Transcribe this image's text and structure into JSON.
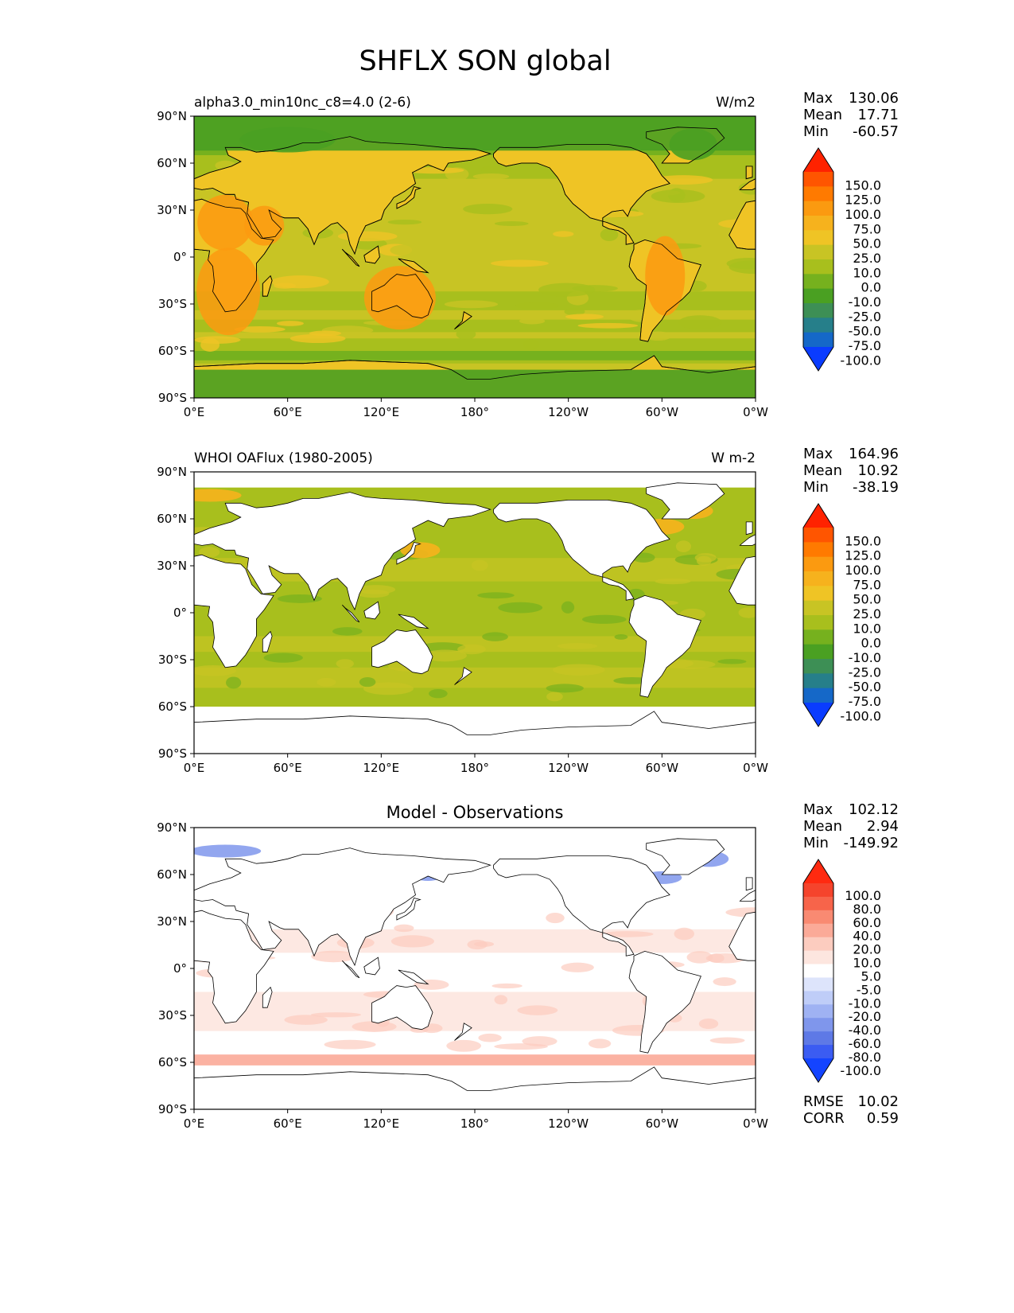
{
  "figure": {
    "title": "SHFLX SON global"
  },
  "chart_data": [
    {
      "type": "heatmap",
      "left_title": "alpha3.0_min10nc_c8=4.0 (2-6)",
      "center_title": "",
      "units": "W/m2",
      "lon_ticks": [
        "0°E",
        "60°E",
        "120°E",
        "180°",
        "120°W",
        "60°W",
        "0°W"
      ],
      "lat_ticks": [
        "90°N",
        "60°N",
        "30°N",
        "0°",
        "30°S",
        "60°S",
        "90°S"
      ],
      "xlim": [
        0,
        360
      ],
      "ylim": [
        -90,
        90
      ],
      "stats": [
        {
          "label": "Max",
          "value": "130.06"
        },
        {
          "label": "Mean",
          "value": "17.71"
        },
        {
          "label": "Min",
          "value": "-60.57"
        }
      ],
      "colorbar": {
        "labels": [
          "150.0",
          "125.0",
          "100.0",
          "75.0",
          "50.0",
          "25.0",
          "10.0",
          "0.0",
          "-10.0",
          "-25.0",
          "-50.0",
          "-75.0",
          "-100.0"
        ],
        "colors": [
          "#ff2200",
          "#ff5500",
          "#ff7a00",
          "#fb9a10",
          "#f6b21d",
          "#efc425",
          "#c8c424",
          "#a8bf1d",
          "#76b11e",
          "#4aa022",
          "#3d8f55",
          "#267f8a",
          "#1568c8",
          "#0a3cff"
        ]
      },
      "land_shown": true,
      "footer": []
    },
    {
      "type": "heatmap",
      "left_title": "WHOI OAFlux (1980-2005)",
      "center_title": "",
      "units": "W m-2",
      "lon_ticks": [
        "0°E",
        "60°E",
        "120°E",
        "180°",
        "120°W",
        "60°W",
        "0°W"
      ],
      "lat_ticks": [
        "90°N",
        "60°N",
        "30°N",
        "0°",
        "30°S",
        "60°S",
        "90°S"
      ],
      "xlim": [
        0,
        360
      ],
      "ylim": [
        -90,
        90
      ],
      "stats": [
        {
          "label": "Max",
          "value": "164.96"
        },
        {
          "label": "Mean",
          "value": "10.92"
        },
        {
          "label": "Min",
          "value": "-38.19"
        }
      ],
      "colorbar": {
        "labels": [
          "150.0",
          "125.0",
          "100.0",
          "75.0",
          "50.0",
          "25.0",
          "10.0",
          "0.0",
          "-10.0",
          "-25.0",
          "-50.0",
          "-75.0",
          "-100.0"
        ],
        "colors": [
          "#ff2200",
          "#ff5500",
          "#ff7a00",
          "#fb9a10",
          "#f6b21d",
          "#efc425",
          "#c8c424",
          "#a8bf1d",
          "#76b11e",
          "#4aa022",
          "#3d8f55",
          "#267f8a",
          "#1568c8",
          "#0a3cff"
        ]
      },
      "land_shown": false,
      "footer": []
    },
    {
      "type": "heatmap",
      "left_title": "",
      "center_title": "Model - Observations",
      "units": "",
      "lon_ticks": [
        "0°E",
        "60°E",
        "120°E",
        "180°",
        "120°W",
        "60°W",
        "0°W"
      ],
      "lat_ticks": [
        "90°N",
        "60°N",
        "30°N",
        "0°",
        "30°S",
        "60°S",
        "90°S"
      ],
      "xlim": [
        0,
        360
      ],
      "ylim": [
        -90,
        90
      ],
      "stats": [
        {
          "label": "Max",
          "value": "102.12"
        },
        {
          "label": "Mean",
          "value": "2.94"
        },
        {
          "label": "Min",
          "value": "-149.92"
        }
      ],
      "colorbar": {
        "labels": [
          "100.0",
          "80.0",
          "60.0",
          "40.0",
          "20.0",
          "10.0",
          "5.0",
          "-5.0",
          "-10.0",
          "-20.0",
          "-40.0",
          "-60.0",
          "-80.0",
          "-100.0"
        ],
        "colors": [
          "#ff2a10",
          "#f5442c",
          "#f7644a",
          "#f98a72",
          "#fbaa98",
          "#fcccbf",
          "#fde6df",
          "#ffffff",
          "#dde4fb",
          "#bfcdf8",
          "#9fb2f3",
          "#7f96ec",
          "#5e79e6",
          "#3b5cf2",
          "#1444ff"
        ]
      },
      "land_shown": false,
      "footer": [
        {
          "label": "RMSE",
          "value": "10.02"
        },
        {
          "label": "CORR",
          "value": "0.59"
        }
      ]
    }
  ]
}
